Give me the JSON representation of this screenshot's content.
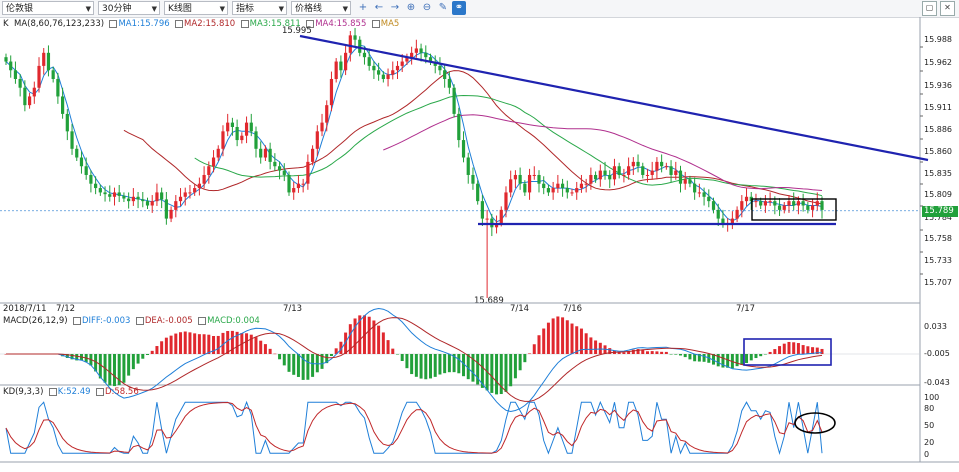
{
  "toolbar": {
    "symbol": "伦敦银",
    "period": "30分钟",
    "chart_type": "K线图",
    "indicator": "指标",
    "price_line": "价格线",
    "tools": [
      "crosshair-icon",
      "arrow-left-icon",
      "arrow-right-icon",
      "zoom-in-icon",
      "zoom-out-icon",
      "draw-pen-icon",
      "link-icon"
    ]
  },
  "main_legend": {
    "label": "K",
    "ma_params": "MA(8,60,76,123,233)",
    "ma1": "MA1:15.796",
    "ma2": "MA2:15.810",
    "ma3": "MA3:15.811",
    "ma4": "MA4:15.855",
    "ma5": "MA5"
  },
  "macd_legend": {
    "params": "MACD(26,12,9)",
    "diff": "DIFF:-0.003",
    "dea": "DEA:-0.005",
    "macd": "MACD:0.004"
  },
  "kd_legend": {
    "params": "KD(9,3,3)",
    "k": "K:52.49",
    "d": "D:58.56"
  },
  "price_axis": [
    "15.988",
    "15.962",
    "15.936",
    "15.911",
    "15.886",
    "15.860",
    "15.835",
    "15.809",
    "15.784",
    "15.758",
    "15.733",
    "15.707"
  ],
  "current_price": "15.789",
  "macd_axis": [
    "0.033",
    "-0.005",
    "-0.043"
  ],
  "kd_axis": [
    "100",
    "80",
    "50",
    "20",
    "0"
  ],
  "annotations": {
    "high": "15.995",
    "low": "15.689"
  },
  "date_labels": [
    "2018/7/11",
    "7/12",
    "7/13",
    "7/14",
    "7/16",
    "7/17"
  ],
  "colors": {
    "up": "#e0282e",
    "down": "#21a03a",
    "ma1": "#1f7fd8",
    "ma2": "#b0282a",
    "ma3": "#2aa84a",
    "ma4": "#b0308e",
    "trendline": "#1f23b0",
    "diff": "#1f7fd8",
    "dea": "#b0282a",
    "k": "#1f7fd8",
    "d": "#c0282a"
  },
  "chart_data": [
    {
      "type": "candlestick",
      "title": "",
      "series": [
        {
          "name": "MA1:15.796",
          "values_note": ""
        },
        {
          "name": "MA2:15.810"
        },
        {
          "name": "MA3:15.811"
        },
        {
          "name": "MA4:15.855"
        }
      ],
      "ylim": [
        15.689,
        15.995
      ],
      "y_ticks": [
        15.988,
        15.962,
        15.936,
        15.911,
        15.886,
        15.86,
        15.835,
        15.809,
        15.784,
        15.758,
        15.733,
        15.707
      ],
      "closes": [
        15.96,
        15.95,
        15.94,
        15.93,
        15.91,
        15.92,
        15.93,
        15.955,
        15.97,
        15.95,
        15.94,
        15.92,
        15.9,
        15.88,
        15.86,
        15.85,
        15.84,
        15.83,
        15.82,
        15.815,
        15.81,
        15.808,
        15.805,
        15.81,
        15.806,
        15.803,
        15.8,
        15.805,
        15.802,
        15.8,
        15.795,
        15.8,
        15.81,
        15.802,
        15.78,
        15.79,
        15.8,
        15.805,
        15.81,
        15.81,
        15.815,
        15.82,
        15.83,
        15.84,
        15.85,
        15.86,
        15.88,
        15.89,
        15.885,
        15.87,
        15.875,
        15.89,
        15.88,
        15.86,
        15.85,
        15.86,
        15.845,
        15.84,
        15.835,
        15.83,
        15.81,
        15.815,
        15.82,
        15.82,
        15.845,
        15.86,
        15.88,
        15.89,
        15.91,
        15.94,
        15.96,
        15.95,
        15.97,
        15.99,
        15.985,
        15.97,
        15.965,
        15.955,
        15.95,
        15.945,
        15.94,
        15.945,
        15.95,
        15.955,
        15.96,
        15.965,
        15.97,
        15.975,
        15.97,
        15.965,
        15.96,
        15.955,
        15.95,
        15.94,
        15.93,
        15.9,
        15.87,
        15.85,
        15.83,
        15.82,
        15.8,
        15.78,
        15.78,
        15.77,
        15.775,
        15.79,
        15.81,
        15.825,
        15.83,
        15.82,
        15.81,
        15.83,
        15.83,
        15.82,
        15.815,
        15.81,
        15.815,
        15.82,
        15.815,
        15.81,
        15.81,
        15.815,
        15.82,
        15.82,
        15.83,
        15.825,
        15.835,
        15.83,
        15.825,
        15.84,
        15.83,
        15.83,
        15.84,
        15.845,
        15.84,
        15.83,
        15.83,
        15.835,
        15.845,
        15.84,
        15.84,
        15.83,
        15.835,
        15.82,
        15.825,
        15.82,
        15.81,
        15.81,
        15.805,
        15.8,
        15.79,
        15.78,
        15.775,
        15.775,
        15.78,
        15.79,
        15.8,
        15.805,
        15.8,
        15.8,
        15.795,
        15.8,
        15.8,
        15.795,
        15.79,
        15.795,
        15.8,
        15.795,
        15.8,
        15.795,
        15.79,
        15.795,
        15.8,
        15.79
      ],
      "high_label": "15.995",
      "low_label": "15.689",
      "current": 15.789
    },
    {
      "type": "bar",
      "title": "",
      "series": [
        {
          "name": "MACD:0.004"
        },
        {
          "name": "DIFF:-0.003"
        },
        {
          "name": "DEA:-0.005"
        }
      ],
      "ylim": [
        -0.043,
        0.033
      ]
    },
    {
      "type": "line",
      "title": "",
      "series": [
        {
          "name": "K:52.49"
        },
        {
          "name": "D:58.56"
        }
      ],
      "ylim": [
        0,
        100
      ]
    }
  ]
}
